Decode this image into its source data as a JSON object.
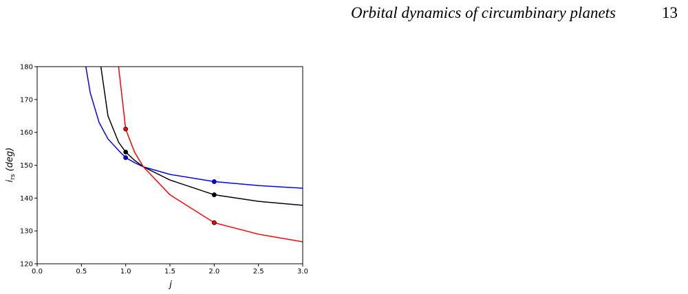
{
  "header": {
    "title": "Orbital dynamics of circumbinary planets",
    "page_number": "13"
  },
  "chart_data": {
    "type": "line",
    "xlabel": "j",
    "ylabel": "i",
    "ylabel_sub": "rs",
    "ylabel_unit": "(deg)",
    "x": [
      0.55,
      0.6,
      0.7,
      0.72,
      0.8,
      0.92,
      1.0,
      1.1,
      1.2,
      1.5,
      2.0,
      2.5,
      3.0
    ],
    "series": [
      {
        "color": "#0000ff",
        "values": [
          180,
          172,
          163,
          162,
          158,
          154.5,
          152.3,
          150.8,
          149.5,
          147.2,
          145,
          143.8,
          143
        ],
        "points_x": [
          1,
          2
        ],
        "points_y": [
          152.3,
          145
        ]
      },
      {
        "color": "#000000",
        "values": [
          null,
          null,
          null,
          180,
          165,
          157,
          154,
          151.5,
          149.5,
          145.5,
          141,
          139,
          137.8
        ],
        "points_x": [
          1,
          2
        ],
        "points_y": [
          154,
          141
        ]
      },
      {
        "color": "#ff0000",
        "values": [
          null,
          null,
          null,
          null,
          null,
          180,
          161,
          154,
          149.5,
          141,
          132.5,
          129,
          126.7
        ],
        "points_x": [
          1,
          2
        ],
        "points_y": [
          161,
          132.5
        ]
      }
    ],
    "xlim": [
      0,
      3
    ],
    "ylim": [
      120,
      180
    ],
    "xticks": [
      {
        "value": 0,
        "label": "0.0"
      },
      {
        "value": 0.5,
        "label": "0.5"
      },
      {
        "value": 1,
        "label": "1.0"
      },
      {
        "value": 1.5,
        "label": "1.5"
      },
      {
        "value": 2,
        "label": "2.0"
      },
      {
        "value": 2.5,
        "label": "2.5"
      },
      {
        "value": 3,
        "label": "3.0"
      }
    ],
    "yticks": [
      120,
      130,
      140,
      150,
      160,
      170,
      180
    ]
  }
}
